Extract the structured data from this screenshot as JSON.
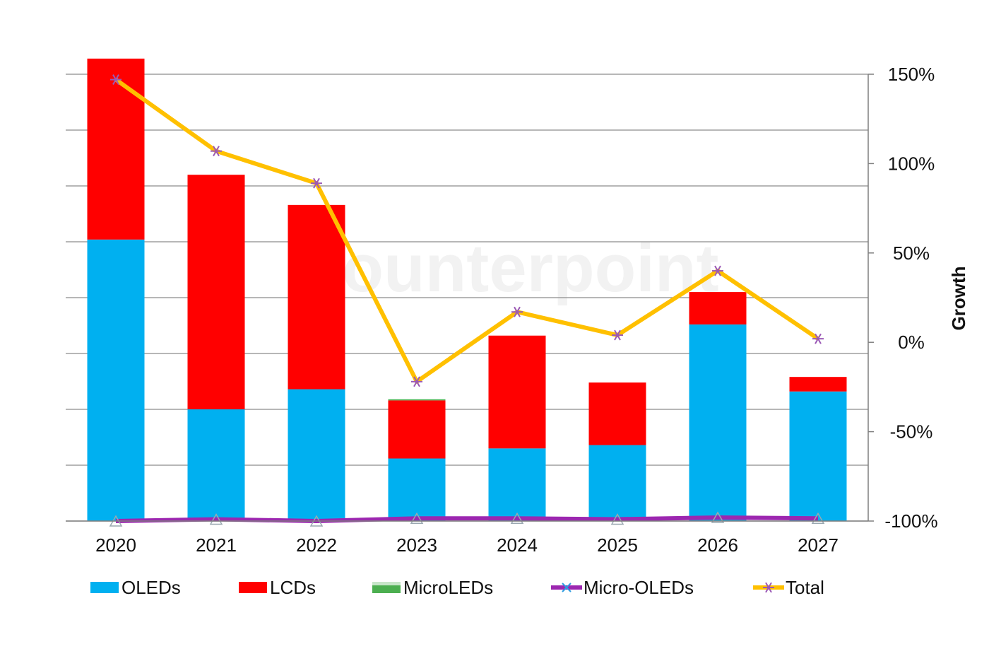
{
  "watermark": "Counterpoint",
  "chart_data": {
    "type": "bar",
    "stacked": true,
    "categories": [
      "2020",
      "2021",
      "2022",
      "2023",
      "2024",
      "2025",
      "2026",
      "2027"
    ],
    "y2label": "Growth",
    "y2ticks": [
      "150%",
      "100%",
      "50%",
      "0%",
      "-50%",
      "-100%"
    ],
    "y2lim": [
      -100,
      150
    ],
    "grid": true,
    "legend_position": "bottom",
    "series": [
      {
        "name": "OLEDs",
        "kind": "bar",
        "color": "#00b0f0",
        "values": [
          252,
          100,
          118,
          56,
          65,
          68,
          176,
          116
        ]
      },
      {
        "name": "LCDs",
        "kind": "bar",
        "color": "#ff0000",
        "values": [
          162,
          210,
          165,
          52,
          101,
          56,
          29,
          13
        ]
      },
      {
        "name": "MicroLEDs",
        "kind": "bar",
        "color": "#4caf50",
        "values": [
          0,
          0,
          0,
          1,
          0,
          0,
          0,
          0
        ]
      },
      {
        "name": "Micro-OLEDs",
        "kind": "line",
        "color": "#9c27b0",
        "values": [
          -100,
          -99,
          -100,
          -98.5,
          -98.5,
          -99,
          -98,
          -98.5
        ]
      },
      {
        "name": "Total",
        "kind": "line",
        "color": "#ffc000",
        "values": [
          147,
          107,
          89,
          -22,
          17,
          4,
          40,
          2
        ]
      }
    ]
  }
}
